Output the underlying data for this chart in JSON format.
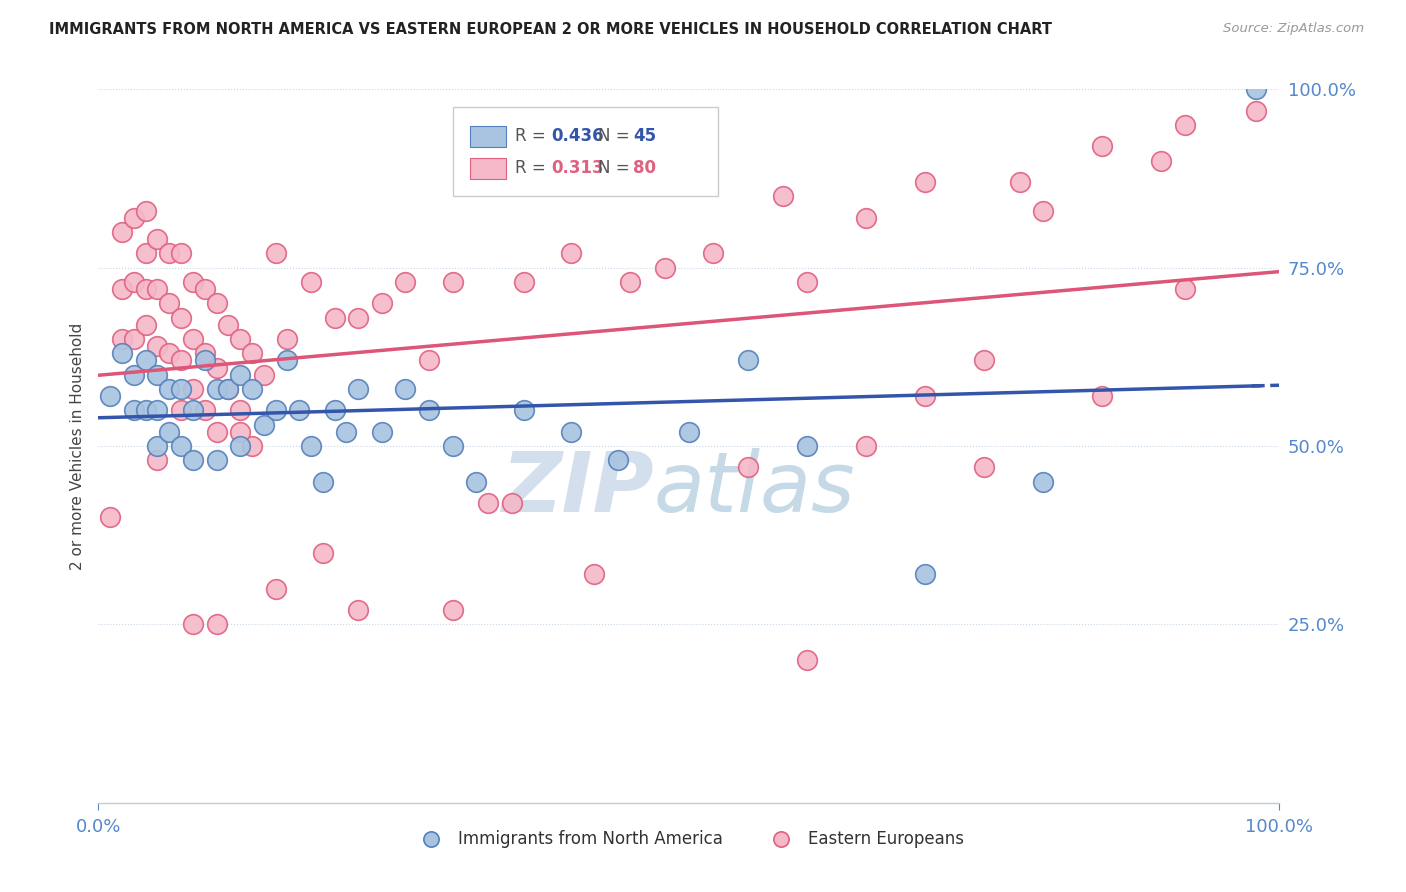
{
  "title": "IMMIGRANTS FROM NORTH AMERICA VS EASTERN EUROPEAN 2 OR MORE VEHICLES IN HOUSEHOLD CORRELATION CHART",
  "source": "Source: ZipAtlas.com",
  "ylabel": "2 or more Vehicles in Household",
  "xlim": [
    0.0,
    1.0
  ],
  "ylim": [
    0.0,
    1.0
  ],
  "xtick_vals": [
    0.0,
    1.0
  ],
  "xtick_labels": [
    "0.0%",
    "100.0%"
  ],
  "ytick_vals": [
    0.25,
    0.5,
    0.75,
    1.0
  ],
  "ytick_labels": [
    "25.0%",
    "50.0%",
    "75.0%",
    "100.0%"
  ],
  "blue_color": "#A8C4E0",
  "blue_edge_color": "#5580BB",
  "pink_color": "#F4B8C8",
  "pink_edge_color": "#E06080",
  "blue_line_color": "#3355AA",
  "pink_line_color": "#DD5577",
  "tick_color": "#5588CC",
  "legend_r_blue": "0.436",
  "legend_n_blue": "45",
  "legend_r_pink": "0.313",
  "legend_n_pink": "80",
  "watermark_zip_color": "#C8D8E8",
  "watermark_atlas_color": "#A0C0D8",
  "blue_x": [
    0.01,
    0.02,
    0.03,
    0.03,
    0.04,
    0.04,
    0.05,
    0.05,
    0.05,
    0.06,
    0.06,
    0.07,
    0.07,
    0.08,
    0.08,
    0.09,
    0.1,
    0.1,
    0.11,
    0.12,
    0.12,
    0.13,
    0.14,
    0.15,
    0.16,
    0.17,
    0.18,
    0.19,
    0.2,
    0.21,
    0.22,
    0.24,
    0.26,
    0.28,
    0.3,
    0.32,
    0.36,
    0.4,
    0.44,
    0.5,
    0.55,
    0.6,
    0.7,
    0.8,
    0.98
  ],
  "blue_y": [
    0.57,
    0.63,
    0.6,
    0.55,
    0.62,
    0.55,
    0.6,
    0.55,
    0.5,
    0.58,
    0.52,
    0.58,
    0.5,
    0.55,
    0.48,
    0.62,
    0.58,
    0.48,
    0.58,
    0.6,
    0.5,
    0.58,
    0.53,
    0.55,
    0.62,
    0.55,
    0.5,
    0.45,
    0.55,
    0.52,
    0.58,
    0.52,
    0.58,
    0.55,
    0.5,
    0.45,
    0.55,
    0.52,
    0.48,
    0.52,
    0.62,
    0.5,
    0.32,
    0.45,
    1.0
  ],
  "pink_x": [
    0.01,
    0.02,
    0.02,
    0.02,
    0.03,
    0.03,
    0.03,
    0.04,
    0.04,
    0.04,
    0.04,
    0.05,
    0.05,
    0.05,
    0.06,
    0.06,
    0.06,
    0.07,
    0.07,
    0.07,
    0.07,
    0.08,
    0.08,
    0.08,
    0.09,
    0.09,
    0.09,
    0.1,
    0.1,
    0.1,
    0.11,
    0.11,
    0.12,
    0.12,
    0.13,
    0.13,
    0.14,
    0.15,
    0.16,
    0.18,
    0.2,
    0.22,
    0.24,
    0.28,
    0.3,
    0.33,
    0.36,
    0.4,
    0.45,
    0.52,
    0.58,
    0.65,
    0.7,
    0.78,
    0.85,
    0.92,
    0.05,
    0.08,
    0.12,
    0.19,
    0.26,
    0.35,
    0.48,
    0.6,
    0.7,
    0.8,
    0.9,
    0.1,
    0.15,
    0.22,
    0.3,
    0.42,
    0.55,
    0.65,
    0.75,
    0.85,
    0.92,
    0.98,
    0.6,
    0.75
  ],
  "pink_y": [
    0.4,
    0.8,
    0.72,
    0.65,
    0.82,
    0.73,
    0.65,
    0.83,
    0.77,
    0.72,
    0.67,
    0.79,
    0.72,
    0.64,
    0.77,
    0.7,
    0.63,
    0.77,
    0.68,
    0.62,
    0.55,
    0.73,
    0.65,
    0.58,
    0.72,
    0.63,
    0.55,
    0.7,
    0.61,
    0.52,
    0.67,
    0.58,
    0.65,
    0.55,
    0.63,
    0.5,
    0.6,
    0.77,
    0.65,
    0.73,
    0.68,
    0.68,
    0.7,
    0.62,
    0.73,
    0.42,
    0.73,
    0.77,
    0.73,
    0.77,
    0.85,
    0.82,
    0.87,
    0.87,
    0.92,
    0.95,
    0.48,
    0.25,
    0.52,
    0.35,
    0.73,
    0.42,
    0.75,
    0.73,
    0.57,
    0.83,
    0.9,
    0.25,
    0.3,
    0.27,
    0.27,
    0.32,
    0.47,
    0.5,
    0.62,
    0.57,
    0.72,
    0.97,
    0.2,
    0.47
  ]
}
